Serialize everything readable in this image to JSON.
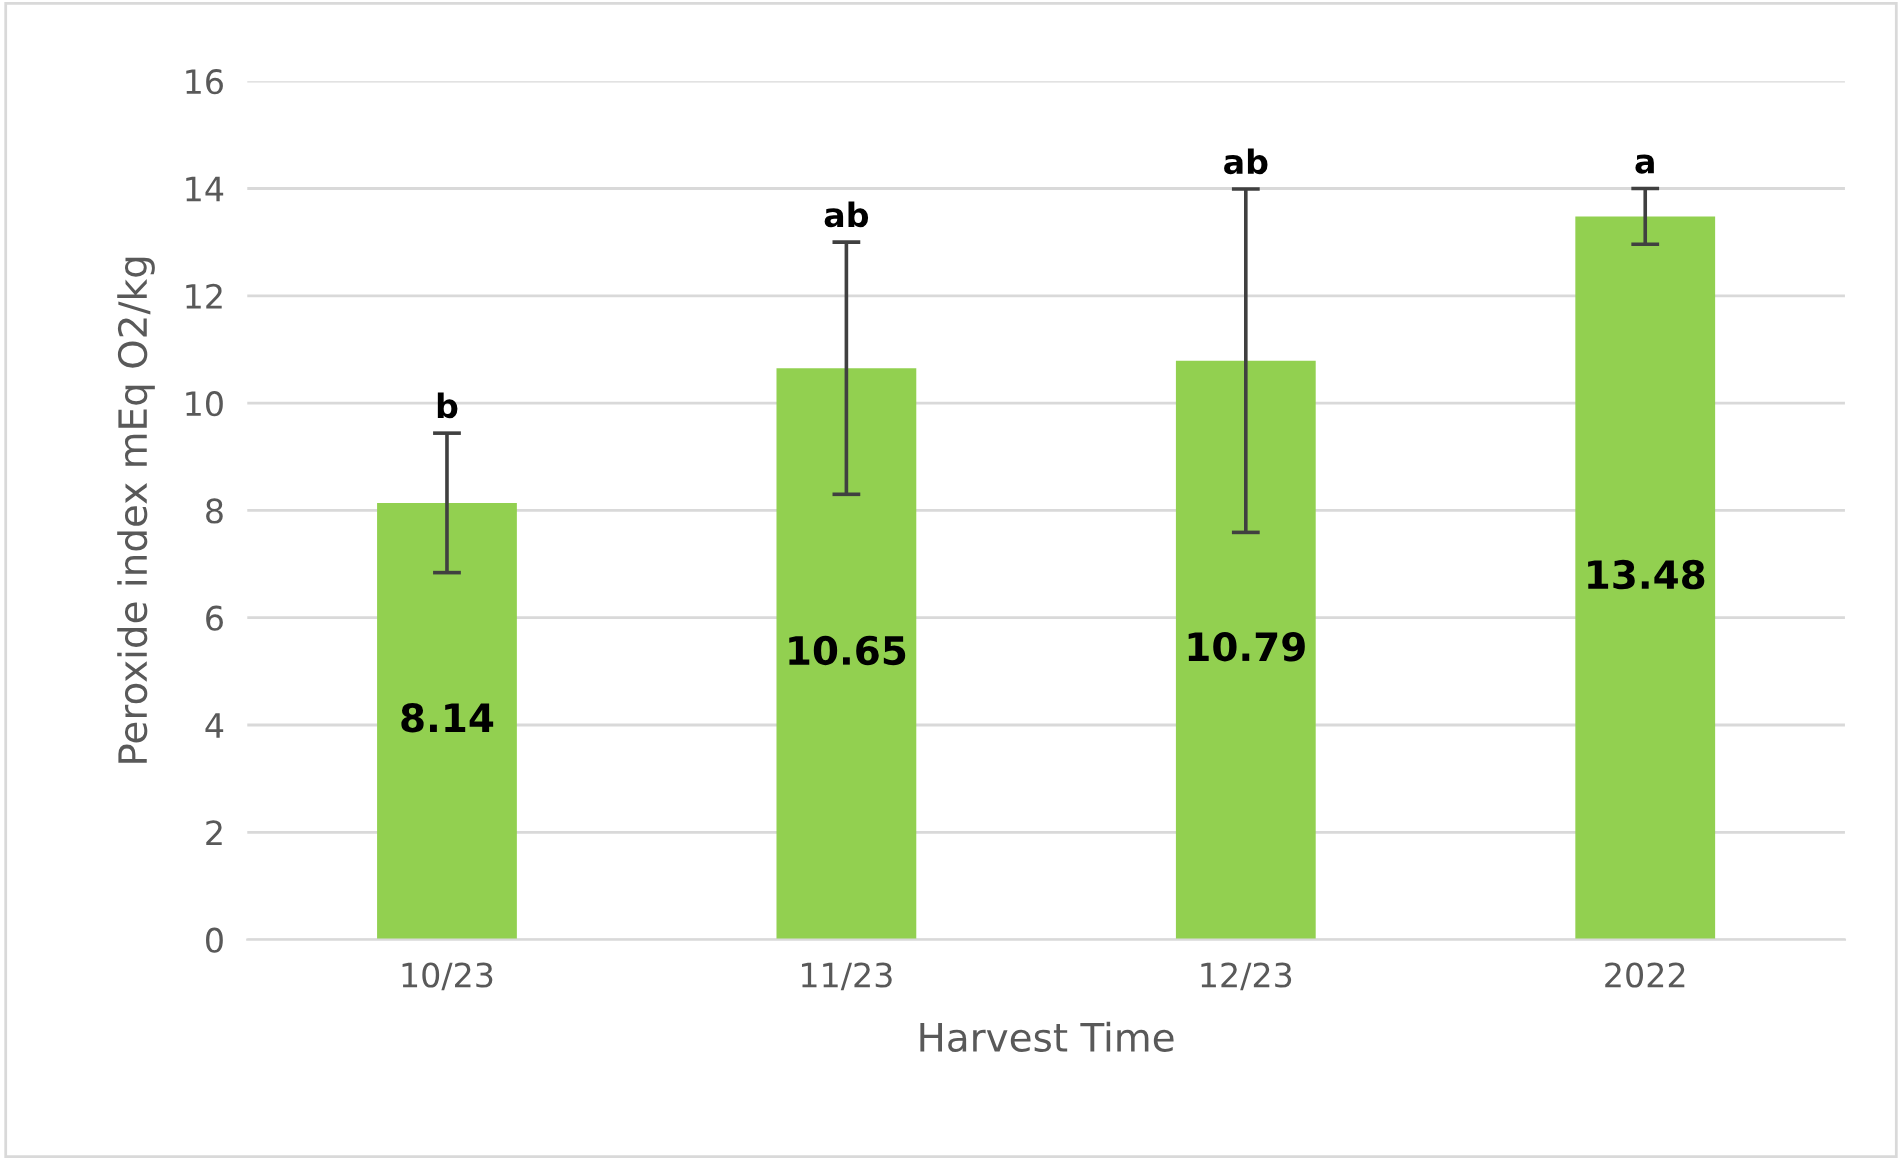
{
  "chart_data": {
    "type": "bar",
    "xlabel": "Harvest Time",
    "ylabel": "Peroxide index mEq O2/kg",
    "categories": [
      "10/23",
      "11/23",
      "12/23",
      "2022"
    ],
    "values": [
      8.14,
      10.65,
      10.79,
      13.48
    ],
    "errors": [
      1.3,
      2.35,
      3.2,
      0.52
    ],
    "color": "#92d050",
    "ylim": [
      0,
      16
    ],
    "yticks": [
      0,
      2,
      4,
      6,
      8,
      10,
      12,
      14,
      16
    ],
    "grid": "y",
    "data_labels": true,
    "annotations": [
      {
        "text": "b",
        "x": "10/23",
        "y": 9.44
      },
      {
        "text": "ab",
        "x": "11/23",
        "y": 13.0
      },
      {
        "text": "ab",
        "x": "12/23",
        "y": 13.99
      },
      {
        "text": "a",
        "x": "2022",
        "y": 14.0
      }
    ]
  }
}
